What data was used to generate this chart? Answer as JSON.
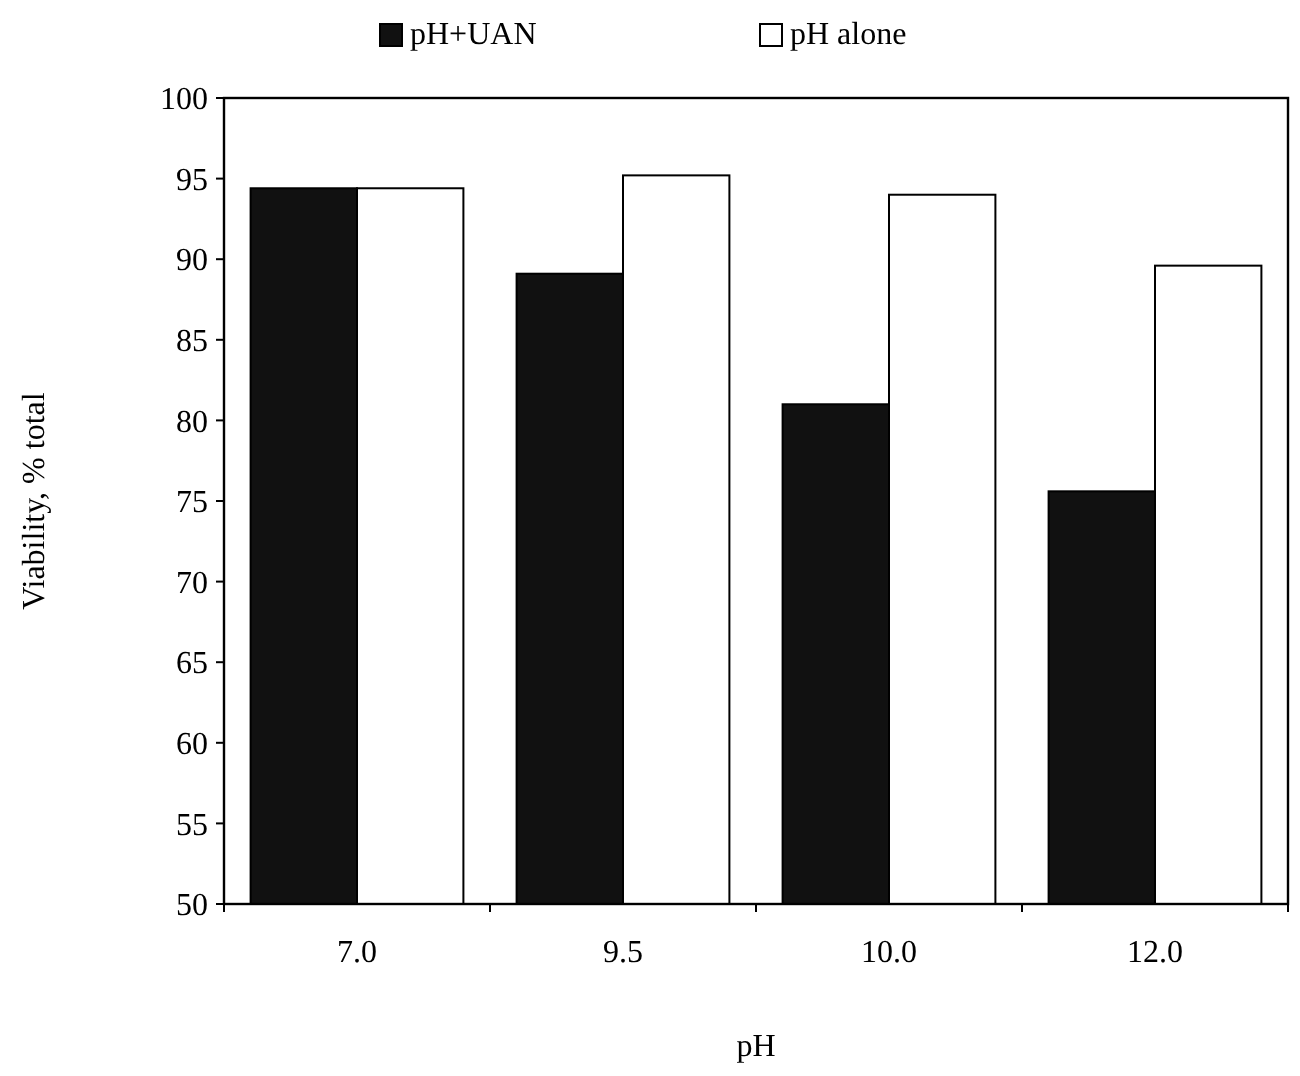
{
  "chart_data": {
    "type": "bar",
    "xlabel": "pH",
    "ylabel": "Viability, % total",
    "categories": [
      "7.0",
      "9.5",
      "10.0",
      "12.0"
    ],
    "series": [
      {
        "name": "pH+UAN",
        "color": "#111111",
        "values": [
          94.4,
          89.1,
          81.0,
          75.6
        ]
      },
      {
        "name": "pH alone",
        "color": "#ffffff",
        "values": [
          94.4,
          95.2,
          94.0,
          89.6
        ]
      }
    ],
    "ylim": [
      50,
      100
    ],
    "yticks": [
      50,
      55,
      60,
      65,
      70,
      75,
      80,
      85,
      90,
      95,
      100
    ],
    "grid": false,
    "legend": "top"
  }
}
